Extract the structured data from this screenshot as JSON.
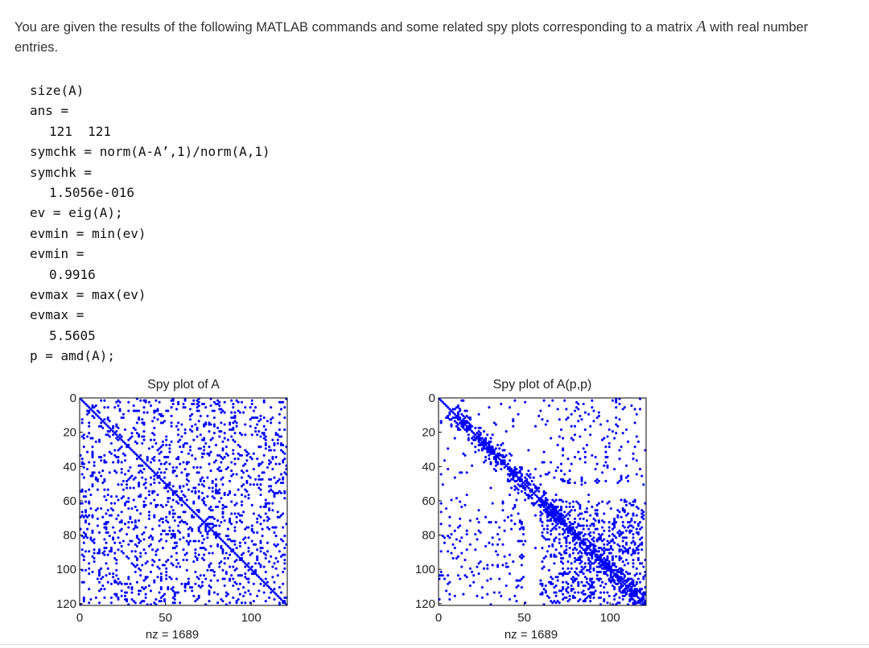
{
  "intro": {
    "before": "You are given the results of the following MATLAB commands and some related spy plots corresponding to a matrix ",
    "symbol": "A",
    "after": " with real number entries."
  },
  "code": [
    {
      "text": "size(A)",
      "out": false
    },
    {
      "text": "ans =",
      "out": false
    },
    {
      "text": "121  121",
      "out": true
    },
    {
      "text": "symchk = norm(A-A’,1)/norm(A,1)",
      "out": false
    },
    {
      "text": "symchk =",
      "out": false
    },
    {
      "text": "1.5056e-016",
      "out": true
    },
    {
      "text": "ev = eig(A);",
      "out": false
    },
    {
      "text": "evmin = min(ev)",
      "out": false
    },
    {
      "text": "evmin =",
      "out": false
    },
    {
      "text": "0.9916",
      "out": true
    },
    {
      "text": "evmax = max(ev)",
      "out": false
    },
    {
      "text": "evmax =",
      "out": false
    },
    {
      "text": "5.5605",
      "out": true
    },
    {
      "text": "p = amd(A);",
      "out": false
    }
  ],
  "chart_data": [
    {
      "type": "scatter",
      "title": "Spy plot of A",
      "xlabel": "nz = 1689",
      "xlim": [
        0,
        121
      ],
      "ylim": [
        0,
        121
      ],
      "y_reversed": true,
      "xticks": [
        0,
        50,
        100
      ],
      "yticks": [
        0,
        20,
        40,
        60,
        80,
        100,
        120
      ],
      "matrix_size": 121,
      "nz": 1689,
      "pattern": "diagonal plus uniformly scattered off-diagonal entries",
      "marker_color": "#0000ff"
    },
    {
      "type": "scatter",
      "title": "Spy plot of A(p,p)",
      "xlabel": "nz = 1689",
      "xlim": [
        0,
        121
      ],
      "ylim": [
        0,
        121
      ],
      "y_reversed": true,
      "xticks": [
        0,
        50,
        100
      ],
      "yticks": [
        0,
        20,
        40,
        60,
        80,
        100,
        120
      ],
      "matrix_size": 121,
      "nz": 1689,
      "pattern": "AMD reordered: dense diagonal blocks, sparse off-diagonal clusters",
      "marker_color": "#0000ff"
    }
  ]
}
